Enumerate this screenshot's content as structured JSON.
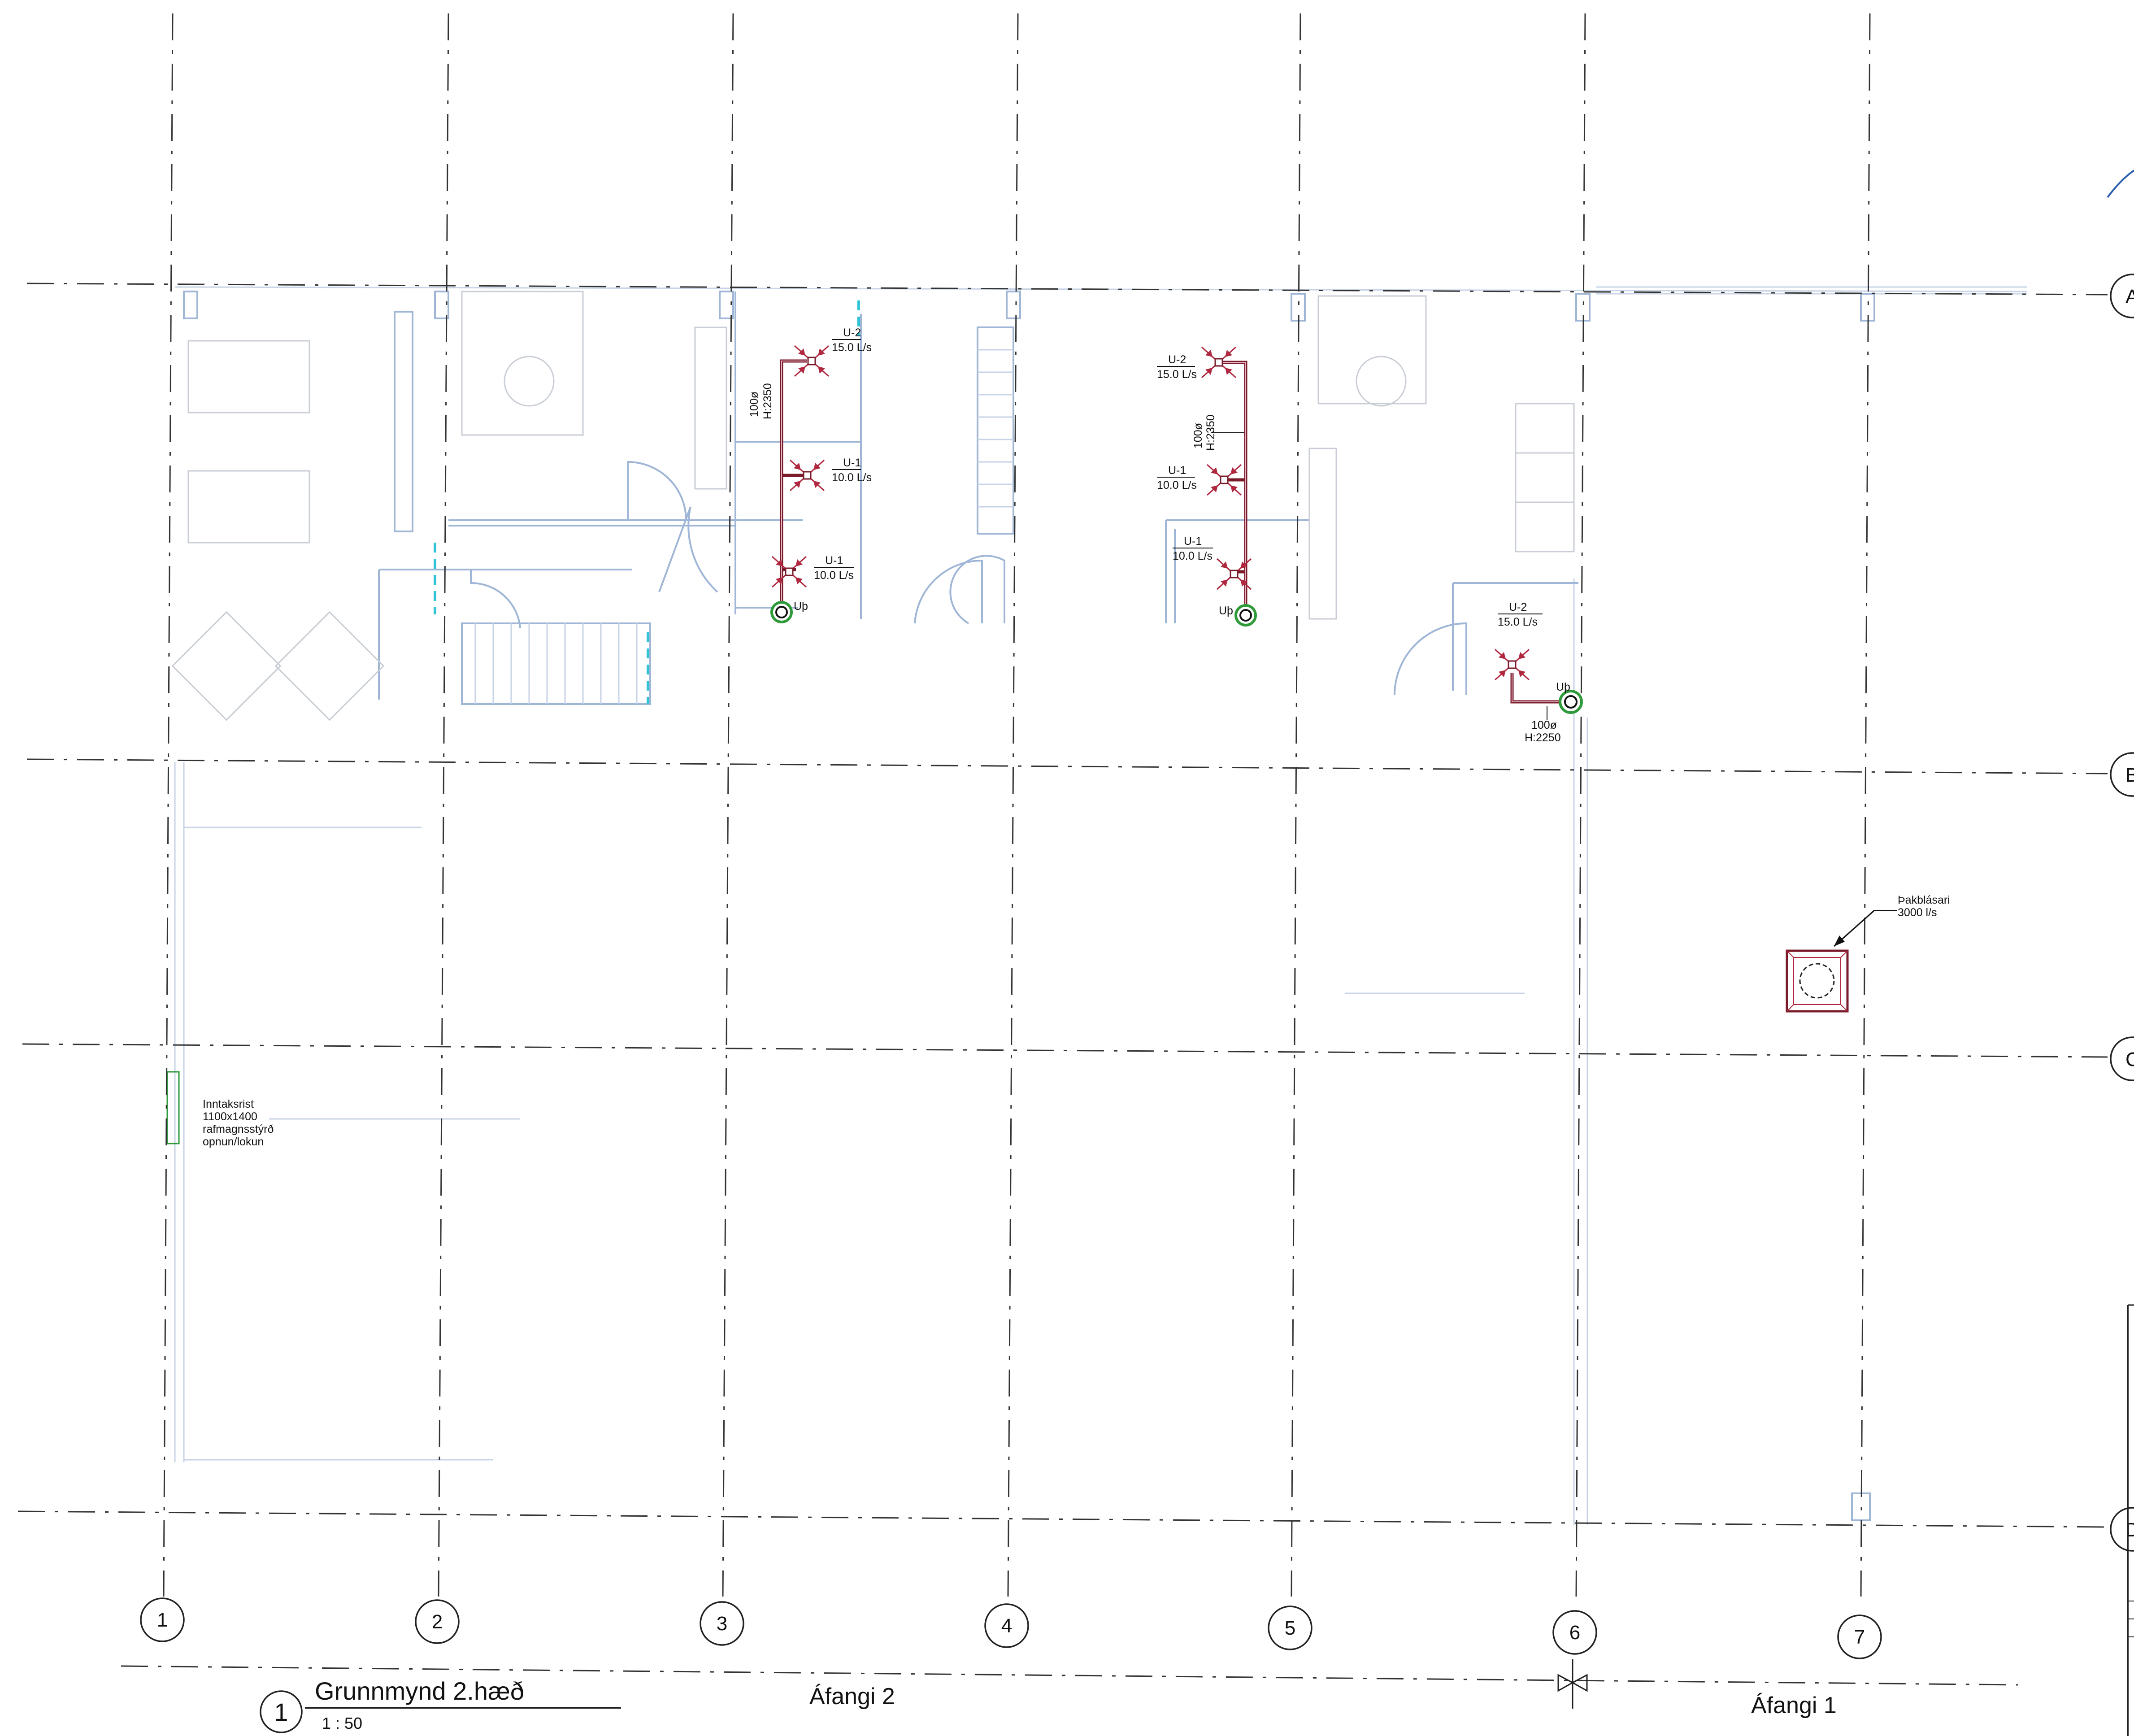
{
  "grid": {
    "columns": [
      "1",
      "2",
      "3",
      "4",
      "5",
      "6",
      "7"
    ],
    "rows": [
      "A",
      "B",
      "C",
      "D"
    ]
  },
  "labels": {
    "u2_a": "U-2",
    "u2_a_flow": "15.0 L/s",
    "u1_a": "U-1",
    "u1_a_flow": "10.0 L/s",
    "u1_b": "U-1",
    "u1_b_flow": "10.0 L/s",
    "duct_a_size": "100ø",
    "duct_a_height": "H:2350",
    "up_a": "Uþ",
    "u2_c": "U-2",
    "u2_c_flow": "15.0 L/s",
    "u1_c": "U-1",
    "u1_c_flow": "10.0 L/s",
    "u1_d": "U-1",
    "u1_d_flow": "10.0 L/s",
    "duct_b_size": "100ø",
    "duct_b_height": "H:2350",
    "up_b": "Uþ",
    "u2_e": "U-2",
    "u2_e_flow": "15.0 L/s",
    "up_c": "Uþ",
    "duct_c_size": "100ø",
    "duct_c_height": "H:2250",
    "fan_name": "Þakblásari",
    "fan_flow": "3000 l/s",
    "intake_1": "Inntaksrist",
    "intake_2": "1100x1400",
    "intake_3": "rafmagnsstýrð",
    "intake_4": "opnun/lokun"
  },
  "title_block": {
    "view_number": "1",
    "view_title": "Grunnmynd 2.hæð",
    "scale": "1 : 50",
    "phase_left": "Áfangi 2",
    "phase_right": "Áfangi 1"
  },
  "colors": {
    "duct": "#7a1b2c",
    "diffuser": "#b0283f",
    "walls": "#9fb6d6",
    "accent_cyan": "#2fc4d6",
    "riser": "#2e9a3a"
  },
  "icons": {
    "riser": "double-circle-riser-icon",
    "diffuser": "four-way-diffuser-icon",
    "roof-fan": "roof-fan-icon",
    "phase-break": "phase-break-icon"
  }
}
